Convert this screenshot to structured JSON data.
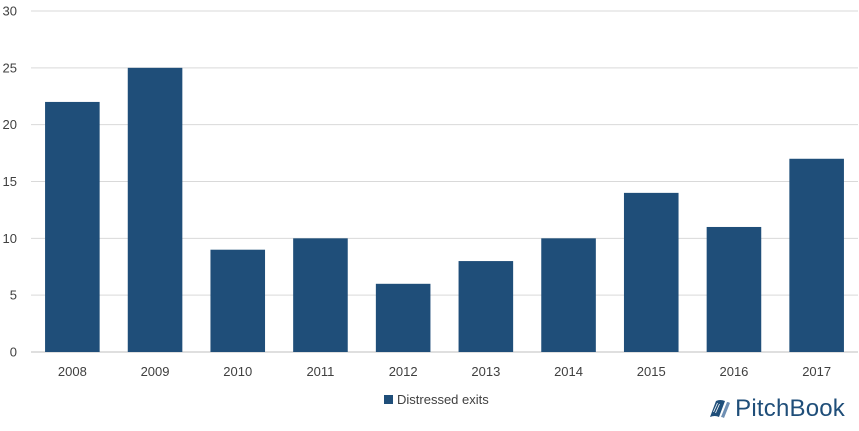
{
  "chart_data": {
    "type": "bar",
    "title": "",
    "xlabel": "",
    "ylabel": "",
    "categories": [
      "2008",
      "2009",
      "2010",
      "2011",
      "2012",
      "2013",
      "2014",
      "2015",
      "2016",
      "2017"
    ],
    "series": [
      {
        "name": "Distressed exits",
        "values": [
          22,
          25,
          9,
          10,
          6,
          8,
          10,
          14,
          11,
          17
        ]
      }
    ],
    "ylim": [
      0,
      30
    ],
    "yticks": [
      "0",
      "5",
      "10",
      "15",
      "20",
      "25",
      "30"
    ],
    "grid": true,
    "legend_position": "bottom",
    "colors": {
      "bar": "#1f4e79",
      "grid": "#d9d9d9",
      "axis": "#bfbfbf",
      "text": "#404040"
    }
  },
  "branding": {
    "logo_text": "PitchBook",
    "logo_icon": "pitchbook-book-icon"
  }
}
